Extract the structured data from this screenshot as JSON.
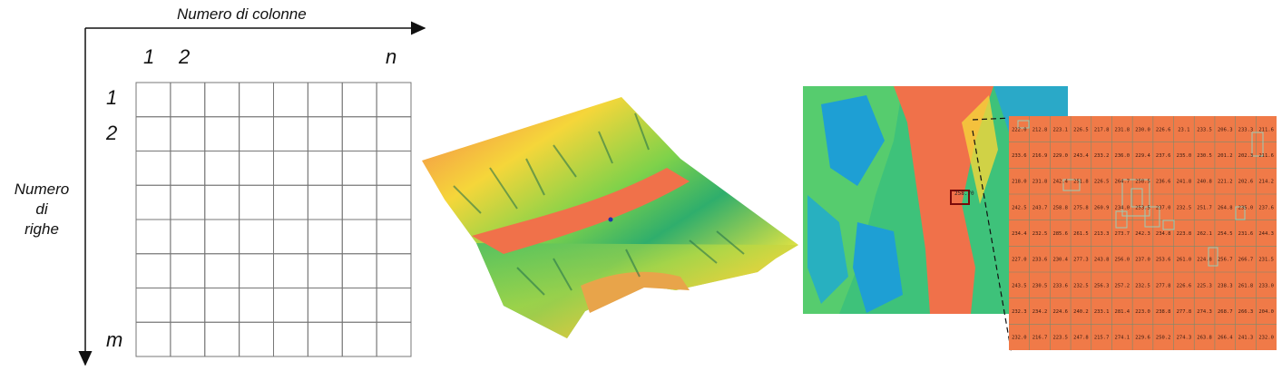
{
  "grid_diagram": {
    "axis_columns_label": "Numero di colonne",
    "axis_rows_label_lines": [
      "Numero",
      "di",
      "righe"
    ],
    "column_labels": [
      "1",
      "2",
      "n"
    ],
    "row_labels": [
      "1",
      "2",
      "m"
    ],
    "columns": 8,
    "rows": 8
  },
  "raster_panel": {
    "cell_rows": [
      [
        "222.0",
        "212.8",
        "223.1",
        "226.5",
        "217.8",
        "231.8",
        "230.0",
        "226.6",
        "23.1",
        "233.5",
        "206.3",
        "233.3",
        "211.6"
      ],
      [
        "233.6",
        "216.9",
        "229.0",
        "243.4",
        "233.2",
        "236.0",
        "229.4",
        "237.6",
        "235.0",
        "230.5",
        "201.2",
        "202.3",
        "211.6"
      ],
      [
        "218.0",
        "231.8",
        "242.4",
        "251.8",
        "226.5",
        "264.7",
        "258.5",
        "236.6",
        "241.8",
        "240.8",
        "221.2",
        "202.6",
        "214.2"
      ],
      [
        "242.5",
        "243.7",
        "258.8",
        "275.8",
        "260.9",
        "234.0",
        "253.5",
        "237.0",
        "232.5",
        "251.7",
        "264.8",
        "235.0",
        "237.6"
      ],
      [
        "234.4",
        "232.5",
        "285.6",
        "261.5",
        "213.3",
        "273.7",
        "242.3",
        "234.8",
        "223.8",
        "262.1",
        "254.5",
        "231.6",
        "244.3"
      ],
      [
        "227.0",
        "233.6",
        "230.4",
        "277.3",
        "243.8",
        "256.0",
        "237.0",
        "253.6",
        "261.0",
        "224.8",
        "256.7",
        "266.7",
        "231.5"
      ],
      [
        "243.5",
        "230.5",
        "233.6",
        "232.5",
        "256.3",
        "257.2",
        "232.5",
        "277.8",
        "226.6",
        "225.3",
        "238.3",
        "261.8",
        "233.0"
      ],
      [
        "232.3",
        "234.2",
        "224.6",
        "240.2",
        "233.1",
        "281.4",
        "223.0",
        "238.8",
        "277.8",
        "274.3",
        "268.7",
        "266.3",
        "204.0"
      ],
      [
        "232.0",
        "216.7",
        "223.5",
        "247.8",
        "215.7",
        "274.1",
        "229.6",
        "250.2",
        "274.3",
        "263.8",
        "266.4",
        "241.3",
        "232.0"
      ]
    ],
    "marker_label": "258.70"
  },
  "colors": {
    "terrain_high": "#f0714a",
    "terrain_mid": "#f7e23a",
    "terrain_low": "#3ec27a",
    "terrain_lowest": "#1e9fd4",
    "cell_grid": "#7a8c6e"
  }
}
